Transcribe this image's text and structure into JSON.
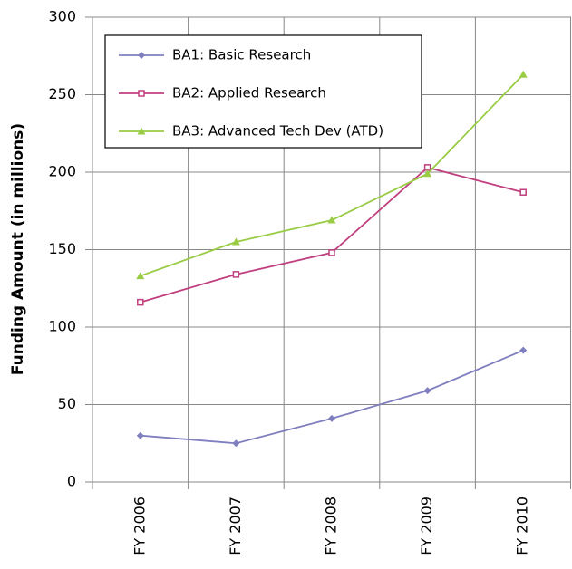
{
  "chart_data": {
    "type": "line",
    "y_label": "Funding Amount (in millions)",
    "categories": [
      "FY 2006",
      "FY 2007",
      "FY 2008",
      "FY 2009",
      "FY 2010"
    ],
    "series": [
      {
        "name": "BA1: Basic Research",
        "color": "#7f7fbf",
        "marker": "diamond",
        "values": [
          30,
          25,
          41,
          59,
          85
        ]
      },
      {
        "name": "BA2: Applied Research",
        "color": "#c0407f",
        "marker": "square",
        "values": [
          116,
          134,
          148,
          203,
          187
        ]
      },
      {
        "name": "BA3: Advanced Tech Dev (ATD)",
        "color": "#99cc44",
        "marker": "triangle",
        "values": [
          133,
          155,
          169,
          199,
          263
        ]
      }
    ],
    "ylim": [
      0,
      300
    ],
    "yticks": [
      0,
      50,
      100,
      150,
      200,
      250,
      300
    ],
    "grid": true,
    "legend": "upper left"
  }
}
